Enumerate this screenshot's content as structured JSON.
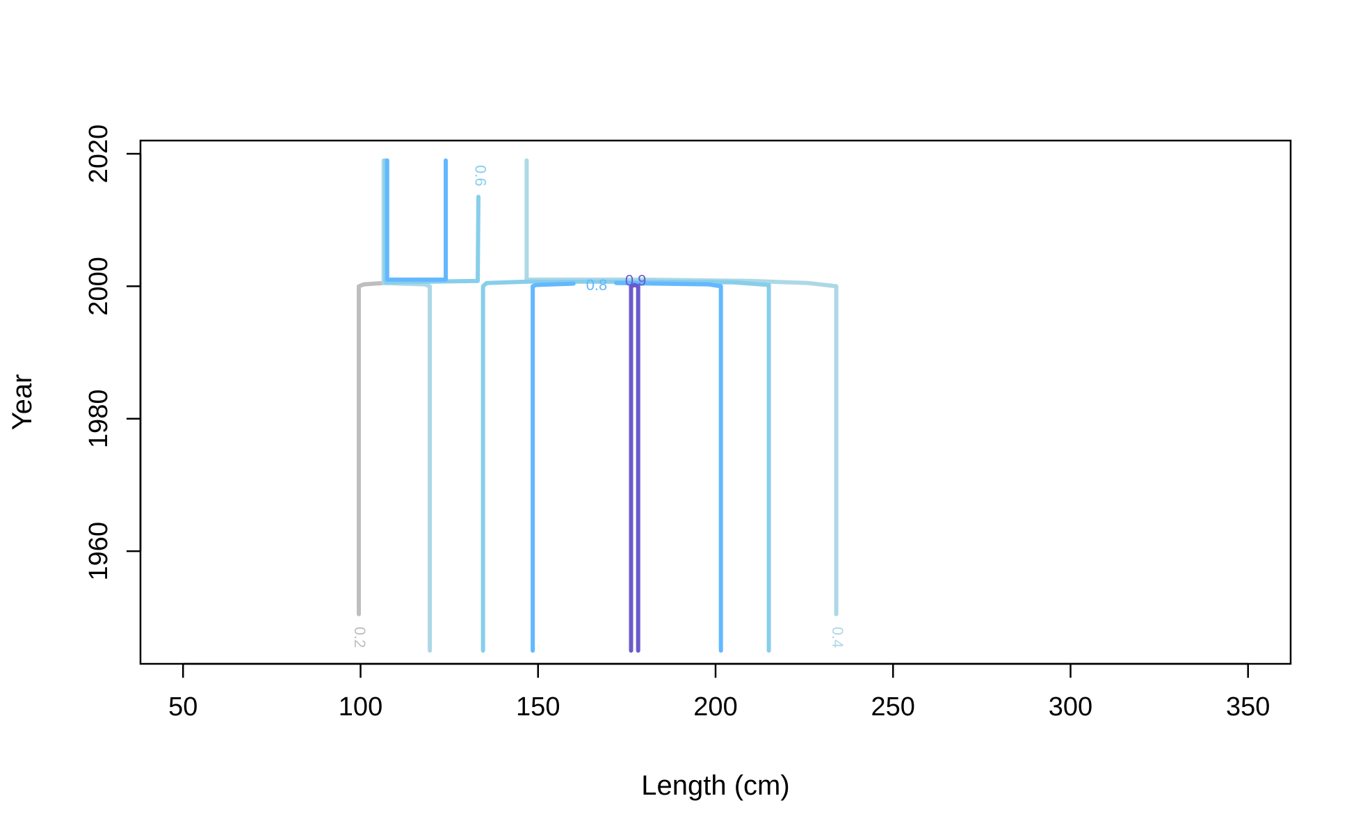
{
  "chart_data": {
    "type": "contour",
    "title": "",
    "xlabel": "Length (cm)",
    "ylabel": "Year",
    "xlim": [
      38,
      362
    ],
    "ylim": [
      1943,
      2022
    ],
    "xticks": [
      50,
      100,
      150,
      200,
      250,
      300,
      350
    ],
    "yticks": [
      1960,
      1980,
      2000,
      2020
    ],
    "grid": false,
    "levels": [
      {
        "label": "0.2",
        "color": "#BEBEBE",
        "label_at": [
          99.5,
          1947
        ],
        "lines": [
          [
            [
              99.5,
              1950.5
            ],
            [
              99.5,
              2000
            ],
            [
              101,
              2000.3
            ],
            [
              106.5,
              2000.5
            ]
          ]
        ]
      },
      {
        "label": "0.4",
        "color": "#ADD8E6",
        "label_at": [
          234,
          1947
        ],
        "lines": [
          [
            [
              119.5,
              1945
            ],
            [
              119.5,
              2000
            ],
            [
              118,
              2000.3
            ],
            [
              106.5,
              2000.5
            ],
            [
              106.5,
              2019
            ]
          ],
          [
            [
              146.8,
              2019
            ],
            [
              146.8,
              2001
            ],
            [
              180,
              2001
            ],
            [
              210,
              2000.8
            ],
            [
              226,
              2000.5
            ],
            [
              234,
              2000
            ],
            [
              234,
              1950.5
            ]
          ]
        ]
      },
      {
        "label": "0.6",
        "color": "#87CEEB",
        "label_at": [
          133.5,
          2016.7
        ],
        "lines": [
          [
            [
              107,
              2019
            ],
            [
              107,
              2000.6
            ],
            [
              133,
              2000.8
            ],
            [
              133.2,
              2013.5
            ]
          ],
          [
            [
              134.5,
              1945
            ],
            [
              134.5,
              2000
            ],
            [
              135.5,
              2000.5
            ],
            [
              147,
              2000.7
            ],
            [
              180,
              2000.7
            ],
            [
              205,
              2000.6
            ],
            [
              215,
              2000.2
            ],
            [
              215,
              1945
            ]
          ]
        ]
      },
      {
        "label": "0.8",
        "color": "#63B8FF",
        "label_at": [
          166.5,
          2000
        ],
        "lines": [
          [
            [
              107.5,
              2019
            ],
            [
              107.5,
              2001
            ],
            [
              124,
              2001
            ],
            [
              124,
              2019
            ]
          ],
          [
            [
              148.5,
              1945
            ],
            [
              148.5,
              2000
            ],
            [
              149.5,
              2000.2
            ],
            [
              160,
              2000.4
            ]
          ],
          [
            [
              172,
              2000.5
            ],
            [
              198,
              2000.3
            ],
            [
              201.5,
              2000
            ],
            [
              201.5,
              1945
            ]
          ]
        ]
      },
      {
        "label": "0.9",
        "color": "#6A5ACD",
        "label_at": [
          177.5,
          2000.7
        ],
        "lines": [
          [
            [
              176.2,
              1945
            ],
            [
              176.2,
              2000
            ],
            [
              177.2,
              2000.2
            ],
            [
              178.2,
              2000
            ],
            [
              178.2,
              1945
            ]
          ]
        ]
      }
    ]
  }
}
